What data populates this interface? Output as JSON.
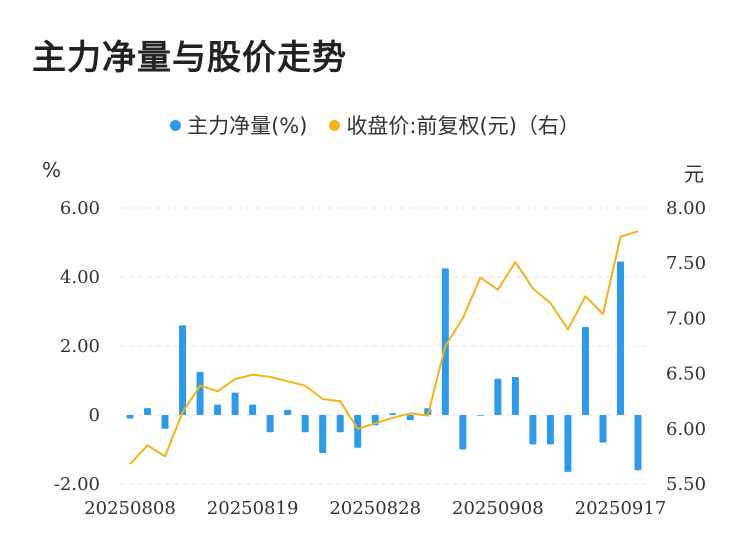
{
  "title": "主力净量与股价走势",
  "legend": [
    {
      "label": "主力净量(%)",
      "color": "#2e9ae8"
    },
    {
      "label": "收盘价:前复权(元)（右）",
      "color": "#f5b21c"
    }
  ],
  "colors": {
    "bar": "#2e9ae8",
    "line": "#f5b21c",
    "grid": "#e6e6e6"
  },
  "chart_data": {
    "type": "bar",
    "title": "主力净量与股价走势",
    "left_unit": "%",
    "right_unit": "元",
    "x_tick_labels": [
      "20250808",
      "20250819",
      "20250828",
      "20250908",
      "20250917"
    ],
    "x_tick_indices": [
      0,
      7,
      14,
      21,
      28
    ],
    "left_axis": {
      "min": -2,
      "max": 6,
      "ticks": [
        -2,
        0,
        2,
        4,
        6
      ],
      "tick_labels": [
        "-2.00",
        "0",
        "2.00",
        "4.00",
        "6.00"
      ]
    },
    "right_axis": {
      "min": 5.5,
      "max": 8.0,
      "ticks": [
        5.5,
        6.0,
        6.5,
        7.0,
        7.5,
        8.0
      ],
      "tick_labels": [
        "5.50",
        "6.00",
        "6.50",
        "7.00",
        "7.50",
        "8.00"
      ]
    },
    "grid": true,
    "legend_position": "top",
    "series": [
      {
        "name": "主力净量(%)",
        "type": "bar",
        "axis": "left",
        "values": [
          -0.1,
          0.2,
          -0.4,
          2.6,
          1.25,
          0.3,
          0.65,
          0.3,
          -0.5,
          0.15,
          -0.5,
          -1.1,
          -0.5,
          -0.95,
          -0.3,
          0.05,
          -0.15,
          0.2,
          4.25,
          -1.0,
          0.0,
          1.05,
          1.1,
          -0.85,
          -0.85,
          -1.65,
          2.55,
          -0.8,
          4.45,
          -1.6
        ]
      },
      {
        "name": "收盘价:前复权(元)（右）",
        "type": "line",
        "axis": "right",
        "values": [
          5.68,
          5.85,
          5.75,
          6.15,
          6.39,
          6.34,
          6.45,
          6.49,
          6.47,
          6.43,
          6.39,
          6.27,
          6.25,
          6.0,
          6.05,
          6.1,
          6.14,
          6.12,
          6.75,
          7.0,
          7.37,
          7.26,
          7.51,
          7.27,
          7.14,
          6.9,
          7.2,
          7.04,
          7.74,
          7.79
        ]
      }
    ]
  }
}
